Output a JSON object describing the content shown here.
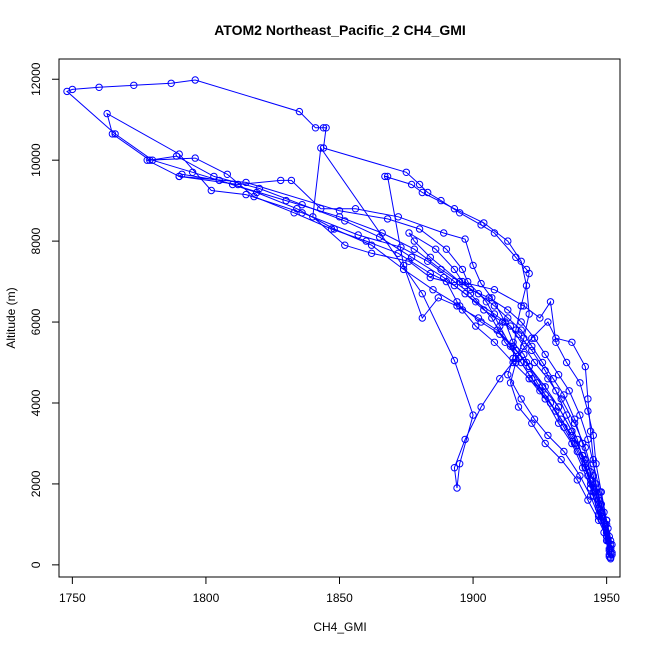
{
  "chart_data": {
    "type": "line",
    "title": "ATOM2 Northeast_Pacific_2 CH4_GMI",
    "xlabel": "CH4_GMI",
    "ylabel": "Altitude (m)",
    "xlim": [
      1745,
      1955
    ],
    "ylim": [
      -300,
      12500
    ],
    "xticks": [
      1750,
      1800,
      1850,
      1900,
      1950
    ],
    "yticks": [
      0,
      2000,
      4000,
      6000,
      8000,
      10000,
      12000
    ],
    "grid": false,
    "legend": "none",
    "color": "#0000ff",
    "series": [
      {
        "points": [
          [
            1951.5,
            150
          ],
          [
            1951,
            400
          ],
          [
            1950,
            800
          ],
          [
            1948,
            1300
          ],
          [
            1946,
            1800
          ],
          [
            1944,
            2300
          ],
          [
            1941,
            3000
          ],
          [
            1938,
            3600
          ],
          [
            1934,
            4200
          ],
          [
            1930,
            4600
          ],
          [
            1926,
            5000
          ],
          [
            1922,
            5400
          ],
          [
            1918,
            5800
          ],
          [
            1913,
            6100
          ],
          [
            1908,
            6400
          ],
          [
            1902,
            6700
          ],
          [
            1897,
            6900
          ],
          [
            1888,
            7300
          ],
          [
            1878,
            7800
          ],
          [
            1866,
            8200
          ],
          [
            1850,
            8600
          ],
          [
            1830,
            9000
          ],
          [
            1810,
            9400
          ],
          [
            1795,
            9700
          ],
          [
            1780,
            10000
          ],
          [
            1766,
            10650
          ],
          [
            1748,
            11700
          ],
          [
            1750,
            11750
          ],
          [
            1760,
            11800
          ],
          [
            1773,
            11850
          ],
          [
            1787,
            11900
          ],
          [
            1796,
            11980
          ],
          [
            1835,
            11200
          ],
          [
            1841,
            10800
          ],
          [
            1844,
            10800
          ],
          [
            1845,
            10800
          ],
          [
            1844,
            10300
          ],
          [
            1875,
            9700
          ],
          [
            1880,
            9400
          ],
          [
            1883,
            9200
          ],
          [
            1888,
            9000
          ],
          [
            1895,
            8700
          ],
          [
            1903,
            8400
          ],
          [
            1908,
            8200
          ],
          [
            1916,
            7600
          ],
          [
            1920,
            7300
          ],
          [
            1921,
            7200
          ],
          [
            1918,
            6400
          ],
          [
            1916,
            5800
          ],
          [
            1915,
            5100
          ],
          [
            1913,
            4700
          ],
          [
            1918,
            4100
          ],
          [
            1923,
            3600
          ],
          [
            1928,
            3200
          ],
          [
            1934,
            2800
          ],
          [
            1940,
            2200
          ],
          [
            1944,
            1700
          ],
          [
            1947,
            1200
          ],
          [
            1950,
            700
          ],
          [
            1951.5,
            300
          ]
        ]
      },
      {
        "points": [
          [
            1951,
            200
          ],
          [
            1950,
            600
          ],
          [
            1948,
            1100
          ],
          [
            1945,
            1700
          ],
          [
            1942,
            2400
          ],
          [
            1939,
            3100
          ],
          [
            1935,
            3700
          ],
          [
            1931,
            4300
          ],
          [
            1927,
            4800
          ],
          [
            1922,
            5300
          ],
          [
            1917,
            5700
          ],
          [
            1911,
            6000
          ],
          [
            1904,
            6300
          ],
          [
            1897,
            6700
          ],
          [
            1889,
            7100
          ],
          [
            1877,
            7600
          ],
          [
            1865,
            8100
          ],
          [
            1852,
            8500
          ],
          [
            1836,
            8900
          ],
          [
            1820,
            9300
          ],
          [
            1803,
            9600
          ],
          [
            1789,
            10100
          ],
          [
            1779,
            10000
          ],
          [
            1765,
            10650
          ],
          [
            1763,
            11150
          ],
          [
            1790,
            10150
          ],
          [
            1802,
            9250
          ],
          [
            1815,
            9150
          ],
          [
            1836,
            8700
          ],
          [
            1857,
            8150
          ],
          [
            1873,
            7850
          ],
          [
            1883,
            7500
          ],
          [
            1893,
            7000
          ],
          [
            1899,
            6700
          ],
          [
            1907,
            6100
          ],
          [
            1912,
            5500
          ],
          [
            1917,
            5100
          ],
          [
            1921,
            4700
          ],
          [
            1925,
            4300
          ],
          [
            1931,
            3800
          ],
          [
            1937,
            3200
          ],
          [
            1942,
            2600
          ],
          [
            1946,
            1900
          ],
          [
            1949,
            1300
          ],
          [
            1951,
            700
          ],
          [
            1952,
            250
          ]
        ]
      },
      {
        "points": [
          [
            1952,
            300
          ],
          [
            1950.5,
            900
          ],
          [
            1948,
            1500
          ],
          [
            1945,
            2200
          ],
          [
            1942,
            2900
          ],
          [
            1938,
            3500
          ],
          [
            1933,
            4100
          ],
          [
            1928,
            4600
          ],
          [
            1923,
            5000
          ],
          [
            1919,
            5400
          ],
          [
            1914,
            5900
          ],
          [
            1908,
            6200
          ],
          [
            1901,
            6500
          ],
          [
            1893,
            6900
          ],
          [
            1884,
            7200
          ],
          [
            1872,
            7700
          ],
          [
            1860,
            8000
          ],
          [
            1847,
            8300
          ],
          [
            1833,
            8700
          ],
          [
            1818,
            9100
          ],
          [
            1808,
            9650
          ],
          [
            1796,
            10050
          ],
          [
            1778,
            10000
          ],
          [
            1790,
            9600
          ],
          [
            1812,
            9400
          ],
          [
            1828,
            9500
          ],
          [
            1832,
            9500
          ],
          [
            1843,
            8800
          ],
          [
            1856,
            8800
          ],
          [
            1872,
            8600
          ],
          [
            1889,
            8200
          ],
          [
            1897,
            8050
          ],
          [
            1900,
            7400
          ],
          [
            1903,
            6950
          ],
          [
            1907,
            6600
          ],
          [
            1912,
            6000
          ],
          [
            1915,
            5500
          ],
          [
            1919,
            5200
          ],
          [
            1921,
            4900
          ],
          [
            1926,
            4400
          ],
          [
            1932,
            3900
          ],
          [
            1937,
            3300
          ],
          [
            1941,
            2700
          ],
          [
            1944,
            2100
          ],
          [
            1947,
            1500
          ],
          [
            1949.5,
            1000
          ],
          [
            1951.5,
            500
          ]
        ]
      },
      {
        "points": [
          [
            1951,
            250
          ],
          [
            1949,
            800
          ],
          [
            1947,
            1400
          ],
          [
            1944,
            2000
          ],
          [
            1941,
            2700
          ],
          [
            1937,
            3300
          ],
          [
            1932,
            3900
          ],
          [
            1927,
            4400
          ],
          [
            1921,
            4900
          ],
          [
            1916,
            5300
          ],
          [
            1910,
            5700
          ],
          [
            1903,
            6000
          ],
          [
            1895,
            6400
          ],
          [
            1885,
            6800
          ],
          [
            1874,
            7300
          ],
          [
            1862,
            7900
          ],
          [
            1848,
            8300
          ],
          [
            1834,
            8800
          ],
          [
            1819,
            9200
          ],
          [
            1805,
            9500
          ],
          [
            1791,
            9650
          ],
          [
            1790,
            9600
          ],
          [
            1815,
            9450
          ],
          [
            1850,
            8750
          ],
          [
            1868,
            8550
          ],
          [
            1880,
            8300
          ],
          [
            1890,
            7800
          ],
          [
            1896,
            7300
          ],
          [
            1898,
            7000
          ],
          [
            1905,
            6500
          ],
          [
            1910,
            5900
          ],
          [
            1914,
            5400
          ],
          [
            1918,
            5000
          ],
          [
            1922,
            4600
          ],
          [
            1927,
            4200
          ],
          [
            1933,
            3600
          ],
          [
            1938,
            3000
          ],
          [
            1942,
            2500
          ],
          [
            1945,
            1800
          ],
          [
            1948,
            1200
          ],
          [
            1950.5,
            600
          ],
          [
            1951.5,
            180
          ]
        ]
      },
      {
        "points": [
          [
            1951.5,
            400
          ],
          [
            1950,
            1000
          ],
          [
            1947,
            1600
          ],
          [
            1943,
            2200
          ],
          [
            1939,
            2800
          ],
          [
            1934,
            3400
          ],
          [
            1929,
            4000
          ],
          [
            1924,
            4500
          ],
          [
            1920,
            5000
          ],
          [
            1915,
            5400
          ],
          [
            1909,
            5800
          ],
          [
            1902,
            6100
          ],
          [
            1894,
            6400
          ],
          [
            1887,
            6600
          ],
          [
            1881,
            6100
          ],
          [
            1874,
            7400
          ],
          [
            1868,
            9600
          ],
          [
            1867,
            9600
          ],
          [
            1877,
            9400
          ],
          [
            1881,
            9200
          ],
          [
            1893,
            8800
          ],
          [
            1904,
            8450
          ],
          [
            1913,
            8000
          ],
          [
            1918,
            7500
          ],
          [
            1920,
            6900
          ],
          [
            1921,
            6200
          ],
          [
            1919,
            5600
          ],
          [
            1916,
            5000
          ],
          [
            1914,
            4500
          ],
          [
            1917,
            3900
          ],
          [
            1922,
            3500
          ],
          [
            1927,
            3000
          ],
          [
            1933,
            2600
          ],
          [
            1939,
            2100
          ],
          [
            1943,
            1600
          ],
          [
            1947,
            1100
          ],
          [
            1950.5,
            600
          ]
        ]
      },
      {
        "points": [
          [
            1951,
            350
          ],
          [
            1950,
            700
          ],
          [
            1947,
            1250
          ],
          [
            1944,
            1900
          ],
          [
            1941,
            2400
          ],
          [
            1937,
            3000
          ],
          [
            1932,
            3500
          ],
          [
            1927,
            4100
          ],
          [
            1921,
            4600
          ],
          [
            1915,
            5000
          ],
          [
            1908,
            5500
          ],
          [
            1901,
            5900
          ],
          [
            1896,
            6300
          ],
          [
            1894,
            6500
          ],
          [
            1890,
            7000
          ],
          [
            1884,
            7100
          ],
          [
            1876,
            7500
          ],
          [
            1862,
            7700
          ],
          [
            1852,
            7900
          ],
          [
            1840,
            8600
          ],
          [
            1843,
            10300
          ],
          [
            1881,
            6700
          ],
          [
            1893,
            5050
          ],
          [
            1900,
            3700
          ],
          [
            1895,
            2500
          ],
          [
            1894,
            1900
          ],
          [
            1893,
            2400
          ],
          [
            1897,
            3100
          ],
          [
            1903,
            3900
          ],
          [
            1910,
            4600
          ],
          [
            1916,
            5100
          ],
          [
            1922,
            5600
          ],
          [
            1928,
            6000
          ],
          [
            1931,
            5600
          ],
          [
            1937,
            5500
          ],
          [
            1942,
            4900
          ],
          [
            1943,
            4100
          ],
          [
            1944,
            3300
          ],
          [
            1945,
            2600
          ],
          [
            1946,
            2000
          ],
          [
            1948,
            1300
          ],
          [
            1950,
            800
          ],
          [
            1951.5,
            400
          ]
        ]
      },
      {
        "points": [
          [
            1952,
            500
          ],
          [
            1950,
            1100
          ],
          [
            1947.5,
            1800
          ],
          [
            1945,
            2500
          ],
          [
            1943,
            3100
          ],
          [
            1940,
            3700
          ],
          [
            1936,
            4300
          ],
          [
            1932,
            4700
          ],
          [
            1927,
            5200
          ],
          [
            1923,
            5600
          ],
          [
            1918,
            6000
          ],
          [
            1913,
            6300
          ],
          [
            1906,
            6600
          ],
          [
            1899,
            6800
          ],
          [
            1896,
            7000
          ],
          [
            1893,
            7300
          ],
          [
            1886,
            7800
          ],
          [
            1876,
            8200
          ],
          [
            1878,
            8000
          ],
          [
            1884,
            7600
          ],
          [
            1895,
            7000
          ],
          [
            1908,
            6800
          ],
          [
            1919,
            6400
          ],
          [
            1925,
            6100
          ],
          [
            1929,
            6500
          ],
          [
            1931,
            5500
          ],
          [
            1935,
            5000
          ],
          [
            1940,
            4500
          ],
          [
            1943,
            3800
          ],
          [
            1945,
            3200
          ],
          [
            1946,
            2500
          ],
          [
            1948,
            1800
          ],
          [
            1950,
            1100
          ],
          [
            1951.5,
            600
          ]
        ]
      }
    ]
  }
}
